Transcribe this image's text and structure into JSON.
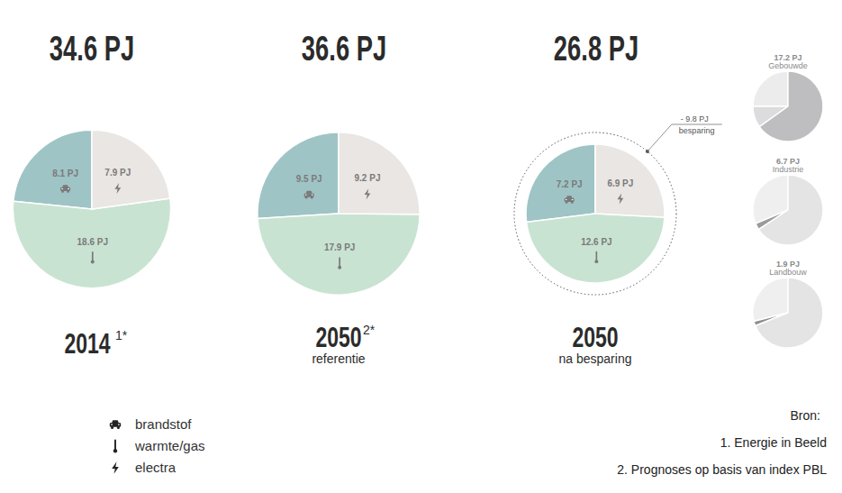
{
  "chart_data": [
    {
      "type": "pie",
      "title": "34.6 PJ",
      "caption": "2014",
      "footnote": "1*",
      "categories": [
        "brandstof",
        "warmte/gas",
        "electra"
      ],
      "values": [
        8.1,
        18.6,
        7.9
      ],
      "value_labels": [
        "8.1 PJ",
        "18.6 PJ",
        "7.9 PJ"
      ],
      "colors": [
        "#9fc4c5",
        "#c9e3d2",
        "#e9e6e3"
      ],
      "data_labels": true,
      "legend": "bottom"
    },
    {
      "type": "pie",
      "title": "36.6 PJ",
      "caption": "2050",
      "footnote": "2*",
      "subtitle": "referentie",
      "categories": [
        "brandstof",
        "warmte/gas",
        "electra"
      ],
      "values": [
        9.5,
        17.9,
        9.2
      ],
      "value_labels": [
        "9.5 PJ",
        "17.9 PJ",
        "9.2 PJ"
      ],
      "colors": [
        "#9fc4c5",
        "#c9e3d2",
        "#e9e6e3"
      ],
      "data_labels": true
    },
    {
      "type": "pie",
      "title": "26.8 PJ",
      "caption": "2050",
      "subtitle": "na besparing",
      "categories": [
        "brandstof",
        "warmte/gas",
        "electra"
      ],
      "values": [
        7.2,
        12.6,
        6.9
      ],
      "value_labels": [
        "7.2 PJ",
        "12.6 PJ",
        "6.9 PJ"
      ],
      "colors": [
        "#9fc4c5",
        "#c9e3d2",
        "#e9e6e3"
      ],
      "data_labels": true,
      "annotation": {
        "value": -9.8,
        "label": "- 9.8 PJ",
        "text": "besparing"
      }
    },
    {
      "type": "pie",
      "title": "17.2 PJ",
      "subtitle": "Gebouwde",
      "values": [
        4.3,
        1.7,
        11.2
      ],
      "colors": [
        "#ececed",
        "#dcdcde",
        "#bebec0"
      ],
      "data_labels": false
    },
    {
      "type": "pie",
      "title": "6.7 PJ",
      "subtitle": "Industrie",
      "values": [
        2.1,
        0.2,
        4.4
      ],
      "colors": [
        "#efefef",
        "#9b9b9b",
        "#e4e4e5"
      ],
      "data_labels": false
    },
    {
      "type": "pie",
      "title": "1.9 PJ",
      "subtitle": "Landbouw",
      "values": [
        0.55,
        0.04,
        1.31
      ],
      "colors": [
        "#efefef",
        "#8e8e8e",
        "#e4e4e5"
      ],
      "data_labels": false
    }
  ],
  "sources": {
    "title": "Bron:",
    "items": [
      "1. Energie in Beeld",
      "2. Prognoses op basis van index PBL"
    ]
  }
}
